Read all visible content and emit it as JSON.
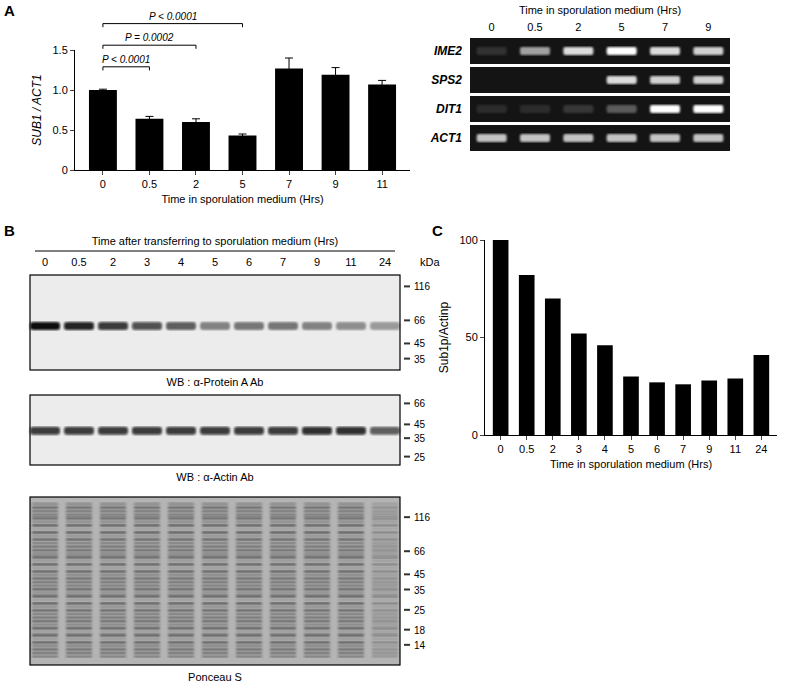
{
  "chart_data": [
    {
      "panel": "A",
      "type": "bar",
      "categories": [
        "0",
        "0.5",
        "2",
        "5",
        "7",
        "9",
        "11"
      ],
      "values": [
        1.0,
        0.64,
        0.6,
        0.43,
        1.27,
        1.19,
        1.07
      ],
      "error": [
        0.01,
        0.03,
        0.04,
        0.02,
        0.13,
        0.09,
        0.05
      ],
      "color": "#000000",
      "x_label": "Time in sporulation medium (Hrs)",
      "y_label": "SUB1 / ACT1",
      "ylim": [
        0,
        1.5
      ],
      "yticks": [
        0,
        0.5,
        {
          "value": 1,
          "label": "1.0"
        },
        1.5
      ],
      "annotations": [
        {
          "text": "P < 0.0001",
          "from": "0",
          "to": "0.5"
        },
        {
          "text": "P = 0.0002",
          "from": "0",
          "to": "2"
        },
        {
          "text": "P < 0.0001",
          "from": "0",
          "to": "5"
        }
      ]
    },
    {
      "panel": "C",
      "type": "bar",
      "categories": [
        "0",
        "0.5",
        "2",
        "3",
        "4",
        "5",
        "6",
        "7",
        "9",
        "11",
        "24"
      ],
      "values": [
        100,
        82,
        70,
        52,
        46,
        30,
        27,
        26,
        28,
        29,
        41
      ],
      "color": "#000000",
      "x_label": "Time in sporulation medium (Hrs)",
      "y_label": "Sub1p/Actinp",
      "ylim": [
        0,
        100
      ],
      "yticks": [
        0,
        50,
        100
      ]
    }
  ],
  "gel": {
    "title": "Time in sporulation medium (Hrs)",
    "lanes": [
      "0",
      "0.5",
      "2",
      "5",
      "7",
      "9"
    ],
    "rows": [
      {
        "name": "IME2",
        "band_intensity": [
          0.12,
          0.6,
          0.85,
          1.0,
          0.85,
          0.8
        ]
      },
      {
        "name": "SPS2",
        "band_intensity": [
          0,
          0,
          0,
          0.85,
          0.8,
          0.8
        ]
      },
      {
        "name": "DIT1",
        "band_intensity": [
          0.1,
          0.1,
          0.15,
          0.3,
          1.0,
          1.0
        ]
      },
      {
        "name": "ACT1",
        "band_intensity": [
          0.75,
          0.75,
          0.75,
          0.75,
          0.75,
          0.75
        ]
      }
    ]
  },
  "blot": {
    "panel": "B",
    "title": "Time after transferring to sporulation medium (Hrs)",
    "lanes": [
      "0",
      "0.5",
      "2",
      "3",
      "4",
      "5",
      "6",
      "7",
      "9",
      "11",
      "24"
    ],
    "unit": "kDa",
    "panes": [
      {
        "caption": "WB : α-Protein A Ab",
        "markers": [
          116,
          66,
          45,
          35
        ],
        "band_kda": 60,
        "band_intensity": [
          1.0,
          0.9,
          0.8,
          0.7,
          0.6,
          0.45,
          0.5,
          0.5,
          0.45,
          0.4,
          0.35
        ]
      },
      {
        "caption": "WB : α-Actin Ab",
        "markers": [
          66,
          45,
          35,
          25
        ],
        "band_kda": 40,
        "band_intensity": [
          0.8,
          0.8,
          0.8,
          0.8,
          0.8,
          0.8,
          0.8,
          0.8,
          0.85,
          0.85,
          0.6
        ]
      },
      {
        "caption": "Ponceau S",
        "markers": [
          116,
          66,
          45,
          35,
          25,
          18,
          14
        ]
      }
    ]
  }
}
